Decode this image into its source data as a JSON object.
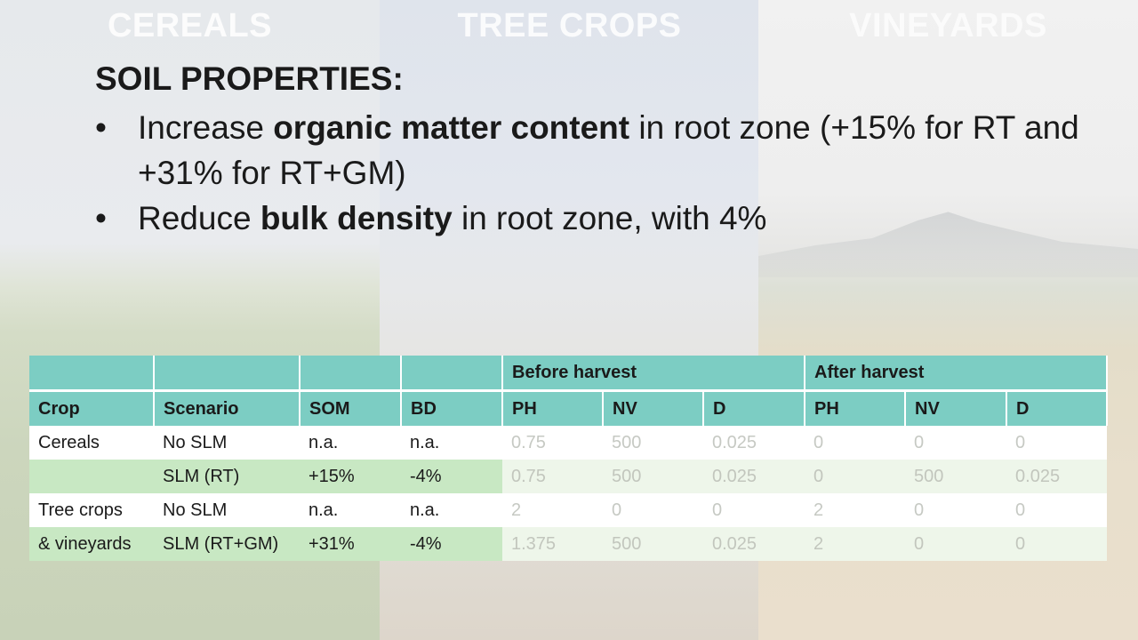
{
  "panels": {
    "cereals": "CEREALS",
    "tree_crops": "TREE CROPS",
    "vineyards": "VINEYARDS"
  },
  "heading": "SOIL PROPERTIES:",
  "bullets": [
    {
      "pre": "Increase ",
      "bold": "organic matter content",
      "post": " in root zone (+15% for RT and +31% for RT+GM)"
    },
    {
      "pre": "Reduce ",
      "bold": "bulk density",
      "post": " in root zone, with 4%"
    }
  ],
  "bullet_glyph": "•",
  "table": {
    "group_headers": [
      "Before harvest",
      "After harvest"
    ],
    "columns": [
      "Crop",
      "Scenario",
      "SOM",
      "BD",
      "PH",
      "NV",
      "D",
      "PH",
      "NV",
      "D"
    ],
    "rows": [
      [
        "Cereals",
        "No SLM",
        "n.a.",
        "n.a.",
        "0.75",
        "500",
        "0.025",
        "0",
        "0",
        "0"
      ],
      [
        "",
        "SLM (RT)",
        "+15%",
        "-4%",
        "0.75",
        "500",
        "0.025",
        "0",
        "500",
        "0.025"
      ],
      [
        "Tree crops",
        "No SLM",
        "n.a.",
        "n.a.",
        "2",
        "0",
        "0",
        "2",
        "0",
        "0"
      ],
      [
        "& vineyards",
        "SLM (RT+GM)",
        "+31%",
        "-4%",
        "1.375",
        "500",
        "0.025",
        "2",
        "0",
        "0"
      ]
    ]
  },
  "colors": {
    "header_teal": "#7ccdc3",
    "highlight_green": "#c8e8c3",
    "row_light_green": "#eef6ea"
  }
}
